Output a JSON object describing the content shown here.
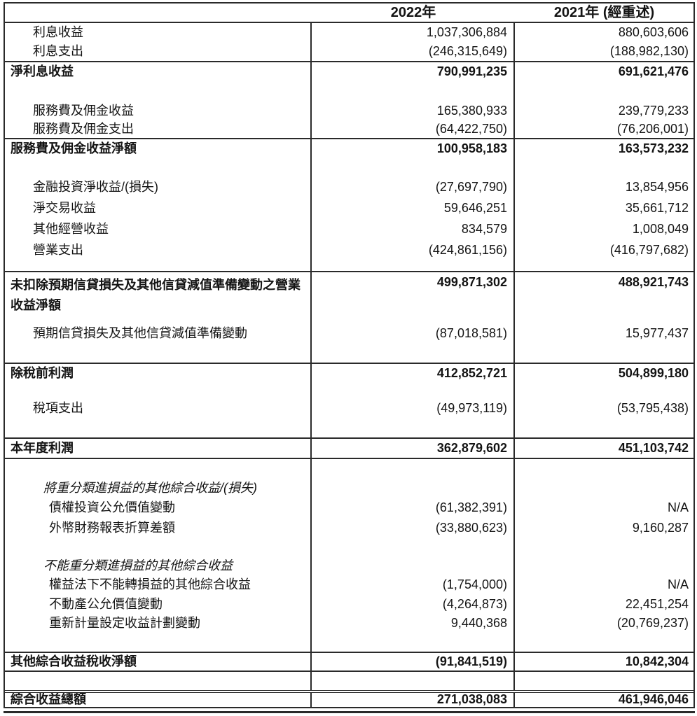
{
  "header": {
    "col2022": "2022年",
    "col2021": "2021年 (經重述)"
  },
  "rows": [
    {
      "kind": "item",
      "label": "利息收益",
      "v2022": "1,037,306,884",
      "v2021": "880,603,606"
    },
    {
      "kind": "item",
      "label": "利息支出",
      "v2022": "(246,315,649)",
      "v2021": "(188,982,130)"
    },
    {
      "kind": "total",
      "label": "淨利息收益",
      "v2022": "790,991,235",
      "v2021": "691,621,476",
      "rule_top": true
    },
    {
      "kind": "spacer"
    },
    {
      "kind": "item",
      "label": "服務費及佣金收益",
      "v2022": "165,380,933",
      "v2021": "239,779,233"
    },
    {
      "kind": "item",
      "label": "服務費及佣金支出",
      "v2022": "(64,422,750)",
      "v2021": "(76,206,001)"
    },
    {
      "kind": "total",
      "label": "服務費及佣金收益淨額",
      "v2022": "100,958,183",
      "v2021": "163,573,232",
      "rule_top": true
    },
    {
      "kind": "spacer"
    },
    {
      "kind": "item",
      "label": "金融投資淨收益/(損失)",
      "v2022": "(27,697,790)",
      "v2021": "13,854,956"
    },
    {
      "kind": "item",
      "label": "淨交易收益",
      "v2022": "59,646,251",
      "v2021": "35,661,712"
    },
    {
      "kind": "item",
      "label": "其他經營收益",
      "v2022": "834,579",
      "v2021": "1,008,049"
    },
    {
      "kind": "item",
      "label": "營業支出",
      "v2022": "(424,861,156)",
      "v2021": "(416,797,682)"
    },
    {
      "kind": "spacer"
    },
    {
      "kind": "total2",
      "label": "未扣除預期信貸損失及其他信貸減值準備變動之營業收益淨額",
      "v2022": "499,871,302",
      "v2021": "488,921,743",
      "rule_top": true
    },
    {
      "kind": "spacer"
    },
    {
      "kind": "item",
      "label": "預期信貸損失及其他信貸減值準備變動",
      "v2022": "(87,018,581)",
      "v2021": "15,977,437"
    },
    {
      "kind": "spacer"
    },
    {
      "kind": "total",
      "label": "除稅前利潤",
      "v2022": "412,852,721",
      "v2021": "504,899,180",
      "rule_top": true
    },
    {
      "kind": "spacer"
    },
    {
      "kind": "item",
      "label": "稅項支出",
      "v2022": "(49,973,119)",
      "v2021": "(53,795,438)"
    },
    {
      "kind": "spacer"
    },
    {
      "kind": "total",
      "label": "本年度利潤",
      "v2022": "362,879,602",
      "v2021": "451,103,742",
      "rule_top": true,
      "rule_bottom": true
    },
    {
      "kind": "spacer"
    },
    {
      "kind": "italic",
      "label": "將重分類進損益的其他綜合收益/(損失)",
      "v2022": "",
      "v2021": ""
    },
    {
      "kind": "item2",
      "label": "債權投資公允價值變動",
      "v2022": "(61,382,391)",
      "v2021": "N/A"
    },
    {
      "kind": "item2",
      "label": "外幣財務報表折算差額",
      "v2022": "(33,880,623)",
      "v2021": "9,160,287"
    },
    {
      "kind": "spacer"
    },
    {
      "kind": "italic",
      "label": "不能重分類進損益的其他綜合收益",
      "v2022": "",
      "v2021": ""
    },
    {
      "kind": "item2",
      "label": "權益法下不能轉損益的其他綜合收益",
      "v2022": "(1,754,000)",
      "v2021": "N/A"
    },
    {
      "kind": "item2",
      "label": "不動產公允價值變動",
      "v2022": "(4,264,873)",
      "v2021": "22,451,254"
    },
    {
      "kind": "item2",
      "label": "重新計量設定收益計劃變動",
      "v2022": "9,440,368",
      "v2021": "(20,769,237)"
    },
    {
      "kind": "spacer"
    },
    {
      "kind": "total",
      "label": "其他綜合收益稅收淨額",
      "v2022": "(91,841,519)",
      "v2021": "10,842,304",
      "rule_top": true,
      "rule_bottom": true
    },
    {
      "kind": "spacer"
    },
    {
      "kind": "total",
      "label": "綜合收益總額",
      "v2022": "271,038,083",
      "v2021": "461,946,046",
      "rule_top_double": true
    }
  ]
}
